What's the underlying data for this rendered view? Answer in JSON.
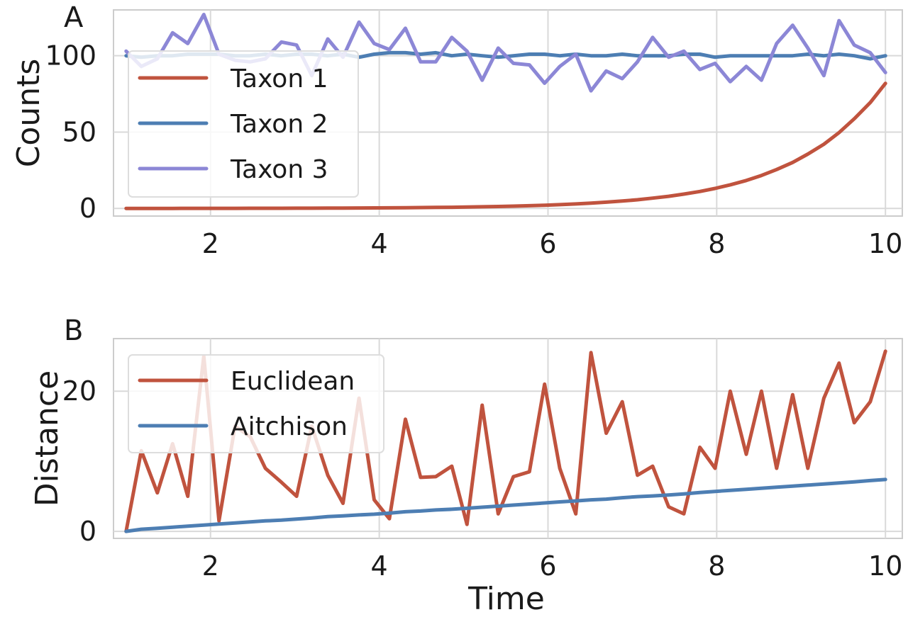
{
  "chart_data": [
    {
      "panel_label": "A",
      "type": "line",
      "xlabel": "",
      "ylabel": "Counts",
      "xlim": [
        0.85,
        10.2
      ],
      "ylim": [
        -5,
        130
      ],
      "xticks": [
        2,
        4,
        6,
        8,
        10
      ],
      "yticks": [
        0,
        50,
        100
      ],
      "grid": true,
      "legend_position": "upper-left",
      "x": [
        1.0,
        1.18,
        1.37,
        1.55,
        1.73,
        1.92,
        2.1,
        2.29,
        2.47,
        2.65,
        2.84,
        3.02,
        3.2,
        3.39,
        3.57,
        3.76,
        3.94,
        4.12,
        4.31,
        4.49,
        4.67,
        4.86,
        5.04,
        5.22,
        5.41,
        5.59,
        5.78,
        5.96,
        6.14,
        6.33,
        6.51,
        6.69,
        6.88,
        7.06,
        7.24,
        7.43,
        7.61,
        7.8,
        7.98,
        8.16,
        8.35,
        8.53,
        8.71,
        8.9,
        9.08,
        9.27,
        9.45,
        9.63,
        9.82,
        10.0
      ],
      "series": [
        {
          "name": "Taxon 1",
          "color": "#c0533e",
          "values": [
            0.02,
            0.02,
            0.03,
            0.03,
            0.04,
            0.05,
            0.06,
            0.07,
            0.08,
            0.1,
            0.12,
            0.14,
            0.17,
            0.2,
            0.24,
            0.28,
            0.33,
            0.39,
            0.46,
            0.55,
            0.65,
            0.77,
            0.91,
            1.07,
            1.27,
            1.5,
            1.77,
            2.09,
            2.47,
            2.92,
            3.45,
            4.08,
            4.82,
            5.69,
            6.72,
            7.94,
            9.38,
            11.08,
            13.09,
            15.46,
            18.27,
            21.58,
            25.5,
            30.12,
            35.59,
            42.04,
            49.67,
            58.68,
            69.32,
            81.9
          ]
        },
        {
          "name": "Taxon 2",
          "color": "#4d7eb3",
          "values": [
            100,
            99,
            100,
            100,
            101,
            101,
            101,
            100,
            100,
            101,
            100,
            101,
            101,
            100,
            101,
            99,
            101,
            102,
            102,
            101,
            102,
            100,
            101,
            100,
            99,
            100,
            101,
            101,
            100,
            101,
            100,
            100,
            101,
            100,
            100,
            100,
            101,
            101,
            99,
            100,
            100,
            100,
            100,
            100,
            101,
            100,
            101,
            100,
            98,
            100
          ]
        },
        {
          "name": "Taxon 3",
          "color": "#8c87d6",
          "values": [
            103,
            93,
            98,
            115,
            108,
            127,
            101,
            97,
            96,
            98,
            109,
            107,
            87,
            111,
            99,
            122,
            108,
            104,
            118,
            96,
            96,
            112,
            103,
            84,
            105,
            95,
            94,
            82,
            93,
            101,
            77,
            90,
            85,
            96,
            112,
            99,
            103,
            91,
            95,
            83,
            93,
            84,
            108,
            120,
            105,
            87,
            123,
            107,
            102,
            89
          ]
        }
      ]
    },
    {
      "panel_label": "B",
      "type": "line",
      "xlabel": "Time",
      "ylabel": "Distance",
      "xlim": [
        0.85,
        10.2
      ],
      "ylim": [
        -1,
        27.5
      ],
      "xticks": [
        2,
        4,
        6,
        8,
        10
      ],
      "yticks": [
        0,
        20
      ],
      "grid": true,
      "legend_position": "upper-left",
      "x": [
        1.0,
        1.18,
        1.37,
        1.55,
        1.73,
        1.92,
        2.1,
        2.29,
        2.47,
        2.65,
        2.84,
        3.02,
        3.2,
        3.39,
        3.57,
        3.76,
        3.94,
        4.12,
        4.31,
        4.49,
        4.67,
        4.86,
        5.04,
        5.22,
        5.41,
        5.59,
        5.78,
        5.96,
        6.14,
        6.33,
        6.51,
        6.69,
        6.88,
        7.06,
        7.24,
        7.43,
        7.61,
        7.8,
        7.98,
        8.16,
        8.35,
        8.53,
        8.71,
        8.9,
        9.08,
        9.27,
        9.45,
        9.63,
        9.82,
        10.0
      ],
      "series": [
        {
          "name": "Euclidean",
          "color": "#c0533e",
          "values": [
            0.0,
            11.5,
            5.5,
            12.5,
            5.0,
            25.0,
            1.5,
            15.0,
            13.5,
            9.0,
            7.0,
            5.0,
            15.0,
            8.0,
            4.0,
            19.0,
            4.5,
            1.8,
            16.0,
            7.7,
            7.8,
            9.3,
            1.0,
            18.0,
            2.5,
            7.8,
            8.5,
            21.0,
            9.0,
            2.5,
            25.5,
            14.0,
            18.5,
            8.0,
            9.3,
            3.5,
            2.5,
            12.0,
            9.0,
            20.0,
            11.0,
            20.0,
            9.0,
            19.5,
            9.0,
            19.0,
            24.0,
            15.5,
            18.5,
            25.7
          ]
        },
        {
          "name": "Aitchison",
          "color": "#4d7eb3",
          "values": [
            0.0,
            0.3,
            0.45,
            0.6,
            0.75,
            0.9,
            1.05,
            1.2,
            1.35,
            1.5,
            1.6,
            1.75,
            1.9,
            2.1,
            2.2,
            2.35,
            2.45,
            2.6,
            2.8,
            2.9,
            3.05,
            3.15,
            3.3,
            3.45,
            3.6,
            3.75,
            3.9,
            4.05,
            4.2,
            4.35,
            4.5,
            4.6,
            4.8,
            4.95,
            5.05,
            5.2,
            5.35,
            5.55,
            5.7,
            5.85,
            6.0,
            6.15,
            6.3,
            6.45,
            6.6,
            6.75,
            6.9,
            7.05,
            7.25,
            7.4
          ]
        }
      ]
    }
  ]
}
